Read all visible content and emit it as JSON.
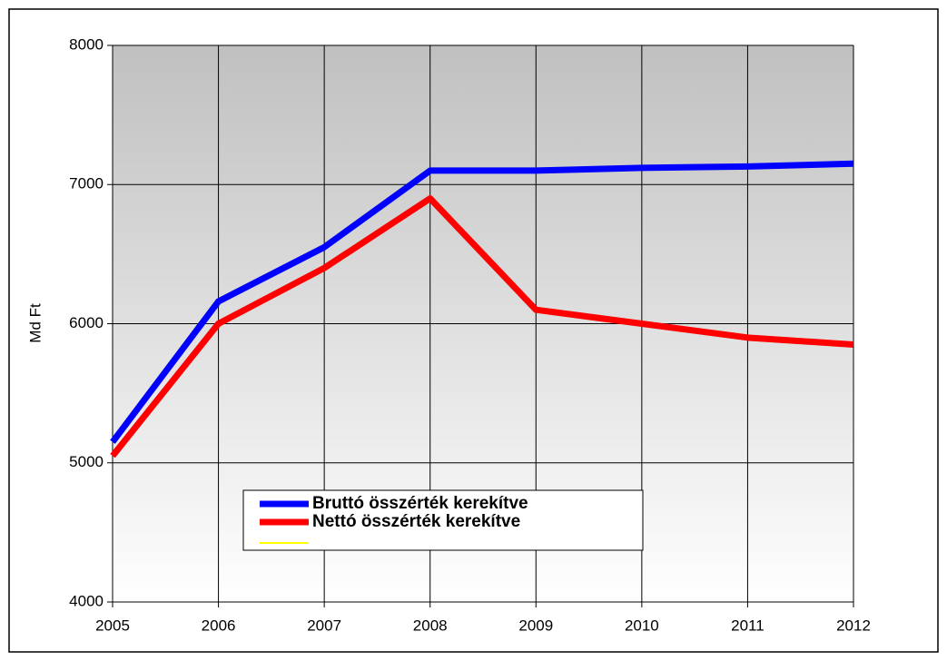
{
  "chart_data": {
    "type": "line",
    "ylabel": "Md Ft",
    "x": [
      2005,
      2006,
      2007,
      2008,
      2009,
      2010,
      2011,
      2012
    ],
    "series": [
      {
        "name": "Bruttó összérték kerekítve",
        "color": "#0000ff",
        "values": [
          5150,
          6160,
          6550,
          7100,
          7100,
          7120,
          7130,
          7150
        ]
      },
      {
        "name": "Nettó összérték kerekítve",
        "color": "#ff0000",
        "values": [
          5050,
          6000,
          6400,
          6900,
          6100,
          6000,
          5900,
          5850
        ]
      }
    ],
    "xlim": [
      2005,
      2012
    ],
    "xticks": [
      2005,
      2006,
      2007,
      2008,
      2009,
      2010,
      2011,
      2012
    ],
    "ylim": [
      4000,
      8000
    ],
    "yticks": [
      4000,
      5000,
      6000,
      7000,
      8000
    ],
    "grid": true,
    "legend": "lower-left"
  }
}
